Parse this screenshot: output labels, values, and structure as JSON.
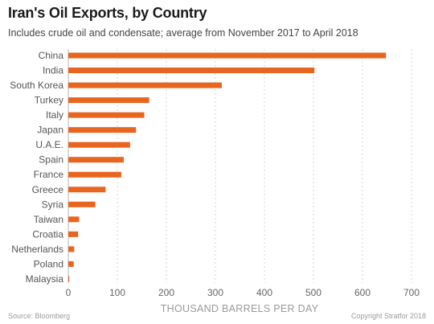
{
  "title": "Iran's Oil Exports, by Country",
  "subtitle": "Includes crude oil and condensate; average from November 2017 to April 2018",
  "source": "Source: Bloomberg",
  "copyright": "Copyright Stratfor 2018",
  "colors": {
    "bar": "#e8651f",
    "grid": "#d4d4d4",
    "axis": "#b5b5b5"
  },
  "chart_data": {
    "type": "bar",
    "orientation": "horizontal",
    "categories": [
      "China",
      "India",
      "South Korea",
      "Turkey",
      "Italy",
      "Japan",
      "U.A.E.",
      "Spain",
      "France",
      "Greece",
      "Syria",
      "Taiwan",
      "Croatia",
      "Netherlands",
      "Poland",
      "Malaysia"
    ],
    "values": [
      648,
      502,
      313,
      165,
      155,
      138,
      126,
      113,
      108,
      76,
      55,
      22,
      20,
      12,
      11,
      2
    ],
    "xlabel": "THOUSAND BARRELS PER DAY",
    "ylabel": "",
    "xlim": [
      0,
      700
    ],
    "xticks": [
      0,
      100,
      200,
      300,
      400,
      500,
      600,
      700
    ],
    "grid": true
  }
}
